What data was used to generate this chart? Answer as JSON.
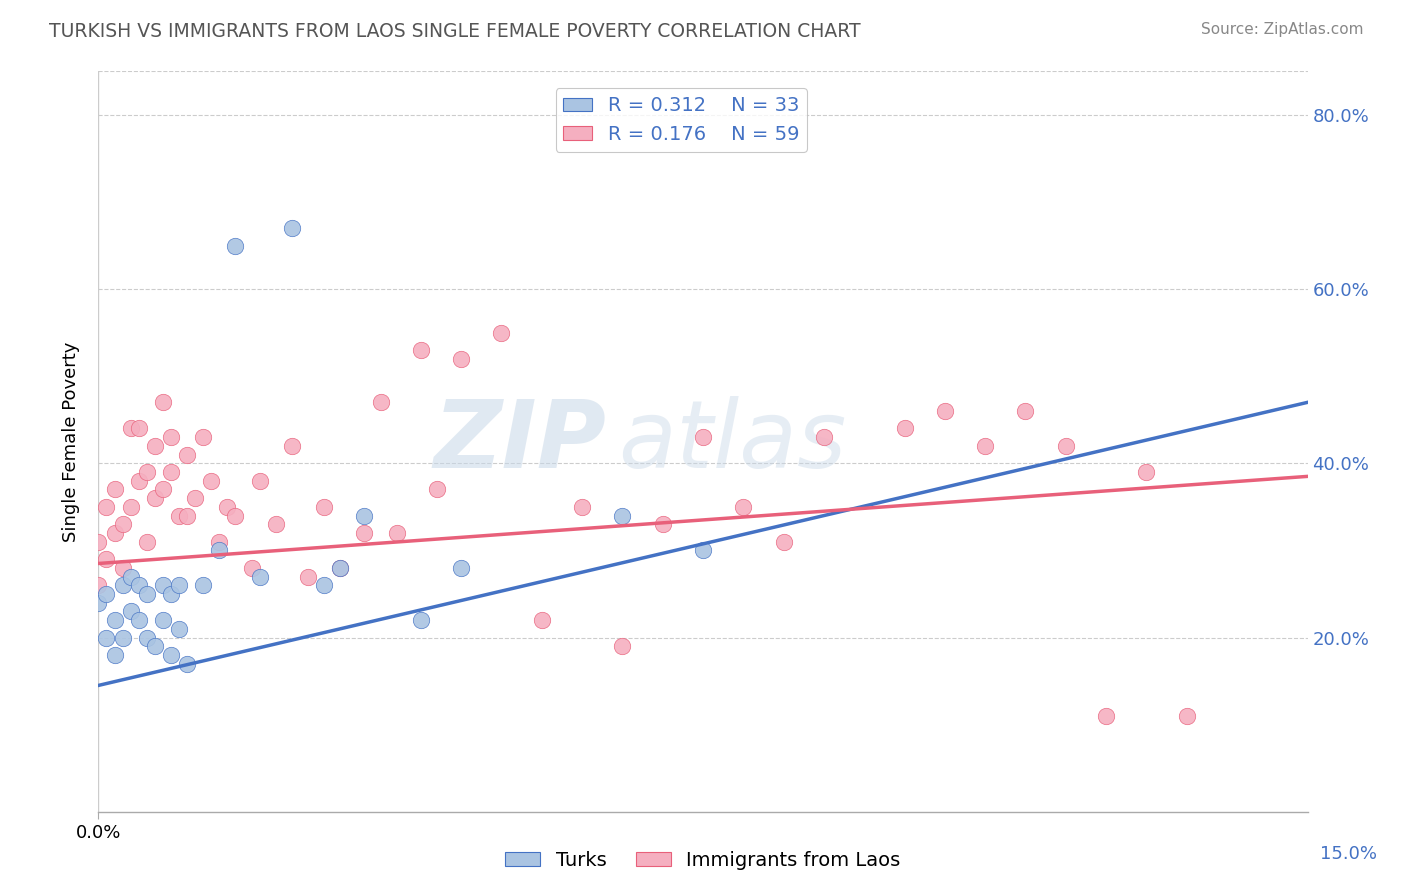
{
  "title": "TURKISH VS IMMIGRANTS FROM LAOS SINGLE FEMALE POVERTY CORRELATION CHART",
  "source": "Source: ZipAtlas.com",
  "ylabel": "Single Female Poverty",
  "watermark_zip": "ZIP",
  "watermark_atlas": "atlas",
  "turks_R": "0.312",
  "turks_N": "33",
  "laos_R": "0.176",
  "laos_N": "59",
  "turks_color": "#aac4e2",
  "laos_color": "#f5afc0",
  "turks_line_color": "#4472c4",
  "laos_line_color": "#e8607a",
  "xmin": 0.0,
  "xmax": 0.15,
  "ymin": 0.0,
  "ymax": 0.85,
  "yticks": [
    0.0,
    0.2,
    0.4,
    0.6,
    0.8
  ],
  "ytick_labels": [
    "",
    "20.0%",
    "40.0%",
    "60.0%",
    "80.0%"
  ],
  "turks_line_x0": 0.0,
  "turks_line_y0": 0.145,
  "turks_line_x1": 0.15,
  "turks_line_y1": 0.47,
  "laos_line_x0": 0.0,
  "laos_line_y0": 0.285,
  "laos_line_x1": 0.15,
  "laos_line_y1": 0.385,
  "turks_x": [
    0.0,
    0.001,
    0.001,
    0.002,
    0.002,
    0.003,
    0.003,
    0.004,
    0.004,
    0.005,
    0.005,
    0.006,
    0.006,
    0.007,
    0.008,
    0.008,
    0.009,
    0.009,
    0.01,
    0.01,
    0.011,
    0.013,
    0.015,
    0.017,
    0.02,
    0.024,
    0.028,
    0.03,
    0.033,
    0.04,
    0.045,
    0.065,
    0.075
  ],
  "turks_y": [
    0.24,
    0.2,
    0.25,
    0.18,
    0.22,
    0.2,
    0.26,
    0.23,
    0.27,
    0.22,
    0.26,
    0.2,
    0.25,
    0.19,
    0.22,
    0.26,
    0.18,
    0.25,
    0.21,
    0.26,
    0.17,
    0.26,
    0.3,
    0.65,
    0.27,
    0.67,
    0.26,
    0.28,
    0.34,
    0.22,
    0.28,
    0.34,
    0.3
  ],
  "laos_x": [
    0.0,
    0.0,
    0.001,
    0.001,
    0.002,
    0.002,
    0.003,
    0.003,
    0.004,
    0.004,
    0.005,
    0.005,
    0.006,
    0.006,
    0.007,
    0.007,
    0.008,
    0.008,
    0.009,
    0.009,
    0.01,
    0.011,
    0.011,
    0.012,
    0.013,
    0.014,
    0.015,
    0.016,
    0.017,
    0.019,
    0.02,
    0.022,
    0.024,
    0.026,
    0.028,
    0.03,
    0.033,
    0.035,
    0.037,
    0.04,
    0.042,
    0.045,
    0.05,
    0.055,
    0.06,
    0.065,
    0.07,
    0.075,
    0.08,
    0.085,
    0.09,
    0.1,
    0.105,
    0.11,
    0.115,
    0.12,
    0.125,
    0.13,
    0.135
  ],
  "laos_y": [
    0.26,
    0.31,
    0.29,
    0.35,
    0.32,
    0.37,
    0.28,
    0.33,
    0.35,
    0.44,
    0.38,
    0.44,
    0.31,
    0.39,
    0.36,
    0.42,
    0.37,
    0.47,
    0.43,
    0.39,
    0.34,
    0.34,
    0.41,
    0.36,
    0.43,
    0.38,
    0.31,
    0.35,
    0.34,
    0.28,
    0.38,
    0.33,
    0.42,
    0.27,
    0.35,
    0.28,
    0.32,
    0.47,
    0.32,
    0.53,
    0.37,
    0.52,
    0.55,
    0.22,
    0.35,
    0.19,
    0.33,
    0.43,
    0.35,
    0.31,
    0.43,
    0.44,
    0.46,
    0.42,
    0.46,
    0.42,
    0.11,
    0.39,
    0.11
  ]
}
